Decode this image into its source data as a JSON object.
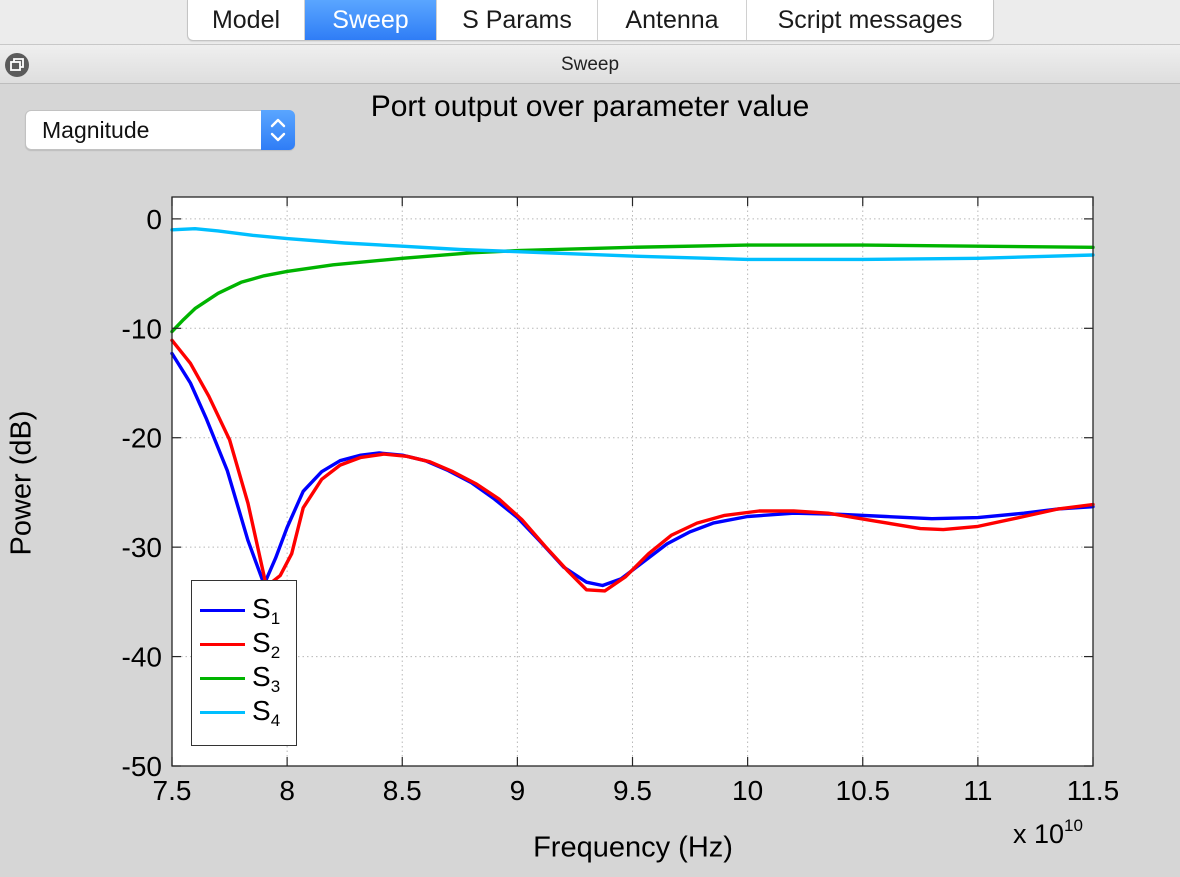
{
  "tabs": [
    {
      "label": "Model",
      "active": false
    },
    {
      "label": "Sweep",
      "active": true
    },
    {
      "label": "S Params",
      "active": false
    },
    {
      "label": "Antenna",
      "active": false
    },
    {
      "label": "Script messages",
      "active": false
    }
  ],
  "panel": {
    "title": "Sweep",
    "undock_icon": "undock-window-icon"
  },
  "display_mode": {
    "selected": "Magnitude",
    "icon": "up-down-chevron-icon"
  },
  "colors": {
    "accent": "#2f7df6",
    "s1": "#0000ff",
    "s2": "#ff0000",
    "s3": "#00b400",
    "s4": "#00bfff"
  },
  "chart_data": {
    "type": "line",
    "title": "Port output over parameter value",
    "xlabel": "Frequency (Hz)",
    "ylabel": "Power (dB)",
    "x_multiplier": "x 10",
    "x_multiplier_exponent": "10",
    "x_multiplier_value": 10000000000,
    "xlim": [
      7.5,
      11.5
    ],
    "ylim": [
      -50,
      2
    ],
    "xticks": [
      "7.5",
      "8",
      "8.5",
      "9",
      "9.5",
      "10",
      "10.5",
      "11",
      "11.5"
    ],
    "yticks": [
      "0",
      "-10",
      "-20",
      "-30",
      "-40",
      "-50"
    ],
    "grid": true,
    "legend_position": "bottom-left",
    "series": [
      {
        "name": "S1",
        "base": "S",
        "sub": "1",
        "color": "#0000ff",
        "points": [
          [
            7.5,
            -12.3
          ],
          [
            7.58,
            -15
          ],
          [
            7.65,
            -18.3
          ],
          [
            7.74,
            -23
          ],
          [
            7.83,
            -29.4
          ],
          [
            7.9,
            -33.4
          ],
          [
            7.95,
            -31
          ],
          [
            8.0,
            -28.2
          ],
          [
            8.07,
            -24.9
          ],
          [
            8.15,
            -23.1
          ],
          [
            8.23,
            -22.1
          ],
          [
            8.32,
            -21.6
          ],
          [
            8.4,
            -21.4
          ],
          [
            8.5,
            -21.6
          ],
          [
            8.6,
            -22.1
          ],
          [
            8.7,
            -23
          ],
          [
            8.8,
            -24.1
          ],
          [
            8.9,
            -25.6
          ],
          [
            9.0,
            -27.3
          ],
          [
            9.1,
            -29.5
          ],
          [
            9.2,
            -31.8
          ],
          [
            9.3,
            -33.2
          ],
          [
            9.37,
            -33.5
          ],
          [
            9.45,
            -32.9
          ],
          [
            9.55,
            -31.3
          ],
          [
            9.65,
            -29.7
          ],
          [
            9.75,
            -28.6
          ],
          [
            9.85,
            -27.8
          ],
          [
            10.0,
            -27.2
          ],
          [
            10.2,
            -26.9
          ],
          [
            10.4,
            -27.0
          ],
          [
            10.6,
            -27.2
          ],
          [
            10.8,
            -27.4
          ],
          [
            11.0,
            -27.3
          ],
          [
            11.2,
            -26.9
          ],
          [
            11.35,
            -26.5
          ],
          [
            11.5,
            -26.3
          ]
        ]
      },
      {
        "name": "S2",
        "base": "S",
        "sub": "2",
        "color": "#ff0000",
        "points": [
          [
            7.5,
            -11.1
          ],
          [
            7.58,
            -13.2
          ],
          [
            7.66,
            -16.2
          ],
          [
            7.75,
            -20.2
          ],
          [
            7.83,
            -26
          ],
          [
            7.91,
            -33.6
          ],
          [
            7.97,
            -32.6
          ],
          [
            8.02,
            -30.6
          ],
          [
            8.07,
            -26.4
          ],
          [
            8.15,
            -23.8
          ],
          [
            8.23,
            -22.5
          ],
          [
            8.32,
            -21.8
          ],
          [
            8.42,
            -21.5
          ],
          [
            8.52,
            -21.7
          ],
          [
            8.62,
            -22.2
          ],
          [
            8.72,
            -23.1
          ],
          [
            8.82,
            -24.2
          ],
          [
            8.92,
            -25.6
          ],
          [
            9.02,
            -27.5
          ],
          [
            9.12,
            -29.9
          ],
          [
            9.22,
            -32.2
          ],
          [
            9.3,
            -33.9
          ],
          [
            9.38,
            -34.0
          ],
          [
            9.47,
            -32.7
          ],
          [
            9.57,
            -30.6
          ],
          [
            9.67,
            -28.9
          ],
          [
            9.78,
            -27.8
          ],
          [
            9.9,
            -27.1
          ],
          [
            10.05,
            -26.7
          ],
          [
            10.2,
            -26.7
          ],
          [
            10.35,
            -26.9
          ],
          [
            10.55,
            -27.6
          ],
          [
            10.75,
            -28.3
          ],
          [
            10.85,
            -28.4
          ],
          [
            11.0,
            -28.1
          ],
          [
            11.2,
            -27.2
          ],
          [
            11.35,
            -26.5
          ],
          [
            11.5,
            -26.1
          ]
        ]
      },
      {
        "name": "S3",
        "base": "S",
        "sub": "3",
        "color": "#00b400",
        "points": [
          [
            7.5,
            -10.3
          ],
          [
            7.55,
            -9.2
          ],
          [
            7.6,
            -8.2
          ],
          [
            7.7,
            -6.8
          ],
          [
            7.8,
            -5.8
          ],
          [
            7.9,
            -5.2
          ],
          [
            8.0,
            -4.8
          ],
          [
            8.2,
            -4.2
          ],
          [
            8.5,
            -3.6
          ],
          [
            8.8,
            -3.1
          ],
          [
            9.0,
            -2.9
          ],
          [
            9.5,
            -2.6
          ],
          [
            10.0,
            -2.4
          ],
          [
            10.5,
            -2.4
          ],
          [
            11.0,
            -2.5
          ],
          [
            11.5,
            -2.6
          ]
        ]
      },
      {
        "name": "S4",
        "base": "S",
        "sub": "4",
        "color": "#00bfff",
        "points": [
          [
            7.5,
            -1.0
          ],
          [
            7.6,
            -0.9
          ],
          [
            7.7,
            -1.1
          ],
          [
            7.85,
            -1.5
          ],
          [
            8.0,
            -1.8
          ],
          [
            8.25,
            -2.2
          ],
          [
            8.5,
            -2.5
          ],
          [
            8.75,
            -2.8
          ],
          [
            9.0,
            -3.0
          ],
          [
            9.5,
            -3.4
          ],
          [
            10.0,
            -3.7
          ],
          [
            10.5,
            -3.7
          ],
          [
            11.0,
            -3.6
          ],
          [
            11.5,
            -3.3
          ]
        ]
      }
    ]
  }
}
